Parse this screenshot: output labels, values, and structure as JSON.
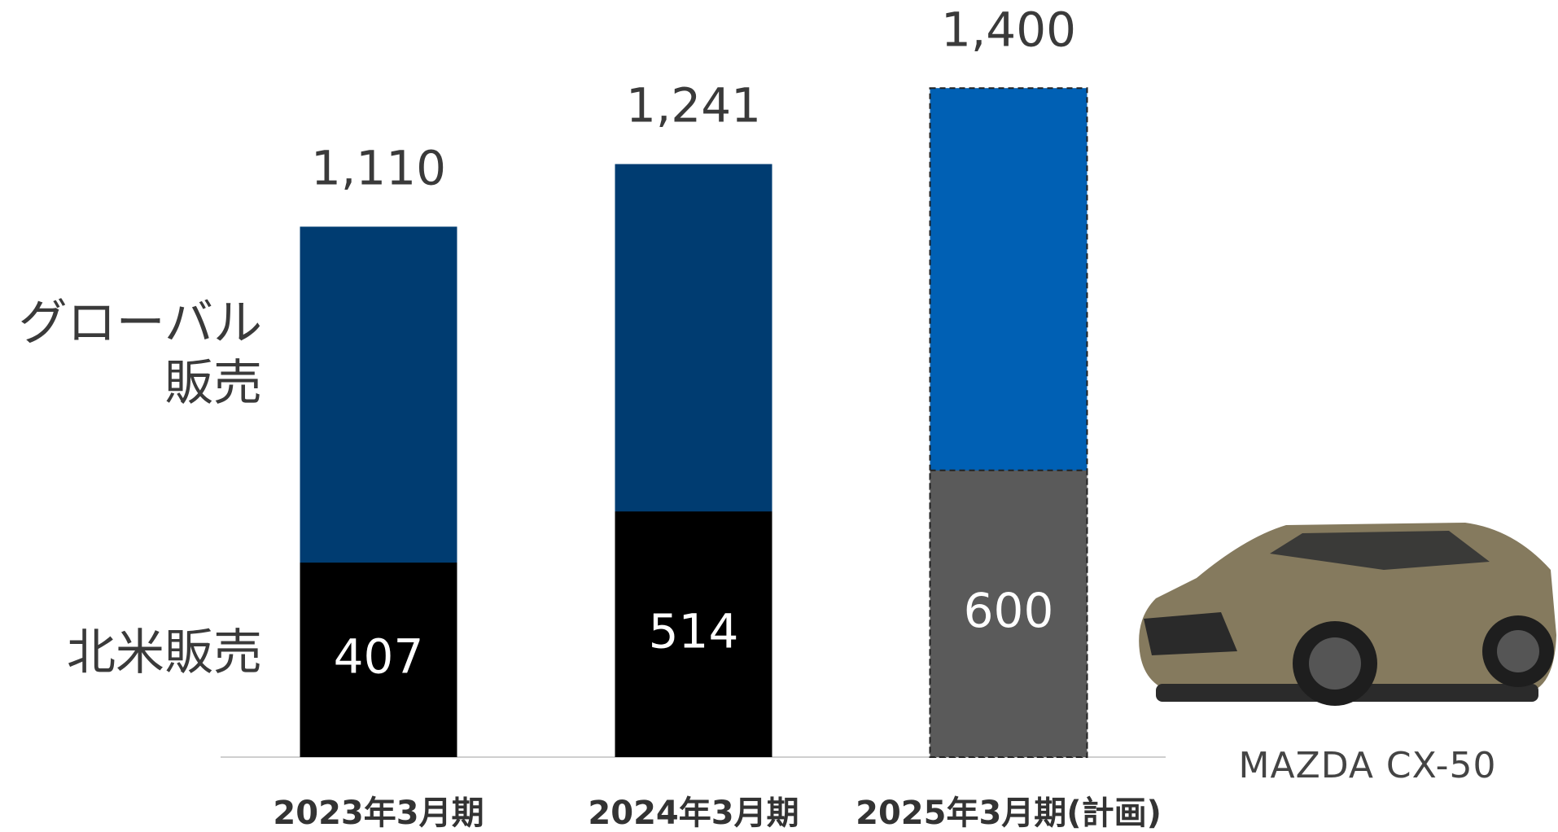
{
  "chart_data": {
    "type": "overlap-bar",
    "categories": [
      "2023年3月期",
      "2024年3月期",
      "2025年3月期(計画)"
    ],
    "series": [
      {
        "name": "グローバル販売",
        "colors": [
          "#003c71",
          "#003c71",
          "#0060b4"
        ],
        "values": [
          1110,
          1241,
          1400
        ],
        "value_labels": [
          "1,110",
          "1,241",
          "1,400"
        ]
      },
      {
        "name": "北米販売",
        "colors": [
          "#000000",
          "#000000",
          "#5a5a5a"
        ],
        "values": [
          407,
          514,
          600
        ]
      }
    ],
    "dashed": [
      false,
      false,
      true
    ]
  },
  "image_caption": "MAZDA CX-50"
}
